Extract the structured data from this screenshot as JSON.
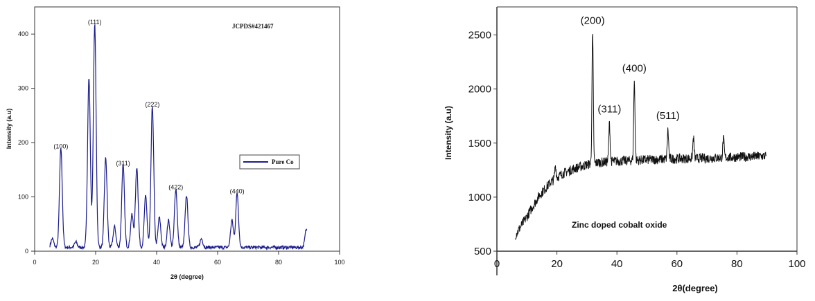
{
  "chart_data": [
    {
      "type": "line",
      "title": "",
      "xlabel": "2θ (degree)",
      "ylabel": "Intensity (a.u)",
      "xlim": [
        0,
        100
      ],
      "ylim": [
        0,
        450
      ],
      "x_ticks": [
        "0",
        "20",
        "40",
        "60",
        "80",
        "100"
      ],
      "y_ticks": [
        "0",
        "100",
        "200",
        "300",
        "400"
      ],
      "annotation_text": "JCPDS#421467",
      "line_color": "#1a1a8c",
      "legend": {
        "placement": "center-right",
        "entries": [
          "Pure Co"
        ]
      },
      "peaks": [
        {
          "label": "(100)",
          "x": 8.6,
          "y": 183
        },
        {
          "label": "(111)",
          "x": 19.7,
          "y": 412
        },
        {
          "label": "(311)",
          "x": 29.0,
          "y": 152
        },
        {
          "label": "(222)",
          "x": 38.6,
          "y": 260
        },
        {
          "label": "(422)",
          "x": 46.3,
          "y": 108
        },
        {
          "label": "(440)",
          "x": 66.4,
          "y": 100
        }
      ],
      "series": [
        {
          "name": "Pure Co",
          "peaks_xy": [
            [
              5.8,
              16
            ],
            [
              8.6,
              183
            ],
            [
              13.5,
              10
            ],
            [
              17.8,
              313
            ],
            [
              19.7,
              412
            ],
            [
              23.3,
              165
            ],
            [
              26.2,
              38
            ],
            [
              29.0,
              152
            ],
            [
              31.9,
              60
            ],
            [
              33.5,
              148
            ],
            [
              36.4,
              95
            ],
            [
              38.6,
              260
            ],
            [
              40.9,
              55
            ],
            [
              43.9,
              50
            ],
            [
              46.3,
              108
            ],
            [
              49.8,
              96
            ],
            [
              54.7,
              16
            ],
            [
              64.7,
              50
            ],
            [
              66.4,
              100
            ],
            [
              89.1,
              33
            ]
          ],
          "baseline": 4
        }
      ]
    },
    {
      "type": "line",
      "title": "",
      "xlabel": "2θ(degree)",
      "ylabel": "Intensity (a.u)",
      "xlim": [
        0,
        100
      ],
      "ylim": [
        500,
        2700
      ],
      "x_ticks": [
        "0",
        "20",
        "40",
        "60",
        "80",
        "100"
      ],
      "y_ticks": [
        "500",
        "1000",
        "1500",
        "2000",
        "2500"
      ],
      "annotation_text": "Zinc doped cobalt oxide",
      "line_color": "#111111",
      "peaks": [
        {
          "label": "(200)",
          "x": 31.9,
          "y": 2500
        },
        {
          "label": "(311)",
          "x": 37.5,
          "y": 1680
        },
        {
          "label": "(400)",
          "x": 45.8,
          "y": 2060
        },
        {
          "label": "(511)",
          "x": 57.0,
          "y": 1620
        }
      ],
      "series": [
        {
          "name": "",
          "baseline_xy": [
            [
              6.2,
              650
            ],
            [
              10,
              820
            ],
            [
              14,
              1010
            ],
            [
              18,
              1140
            ],
            [
              22,
              1220
            ],
            [
              26,
              1265
            ],
            [
              30,
              1300
            ],
            [
              34,
              1320
            ],
            [
              38,
              1330
            ],
            [
              42,
              1335
            ],
            [
              50,
              1345
            ],
            [
              60,
              1355
            ],
            [
              70,
              1360
            ],
            [
              80,
              1370
            ],
            [
              90,
              1380
            ]
          ],
          "peaks_xy": [
            [
              19.5,
              1290
            ],
            [
              31.9,
              2500
            ],
            [
              37.5,
              1680
            ],
            [
              45.8,
              2060
            ],
            [
              57.0,
              1620
            ],
            [
              65.5,
              1550
            ],
            [
              75.5,
              1540
            ]
          ]
        }
      ]
    }
  ]
}
